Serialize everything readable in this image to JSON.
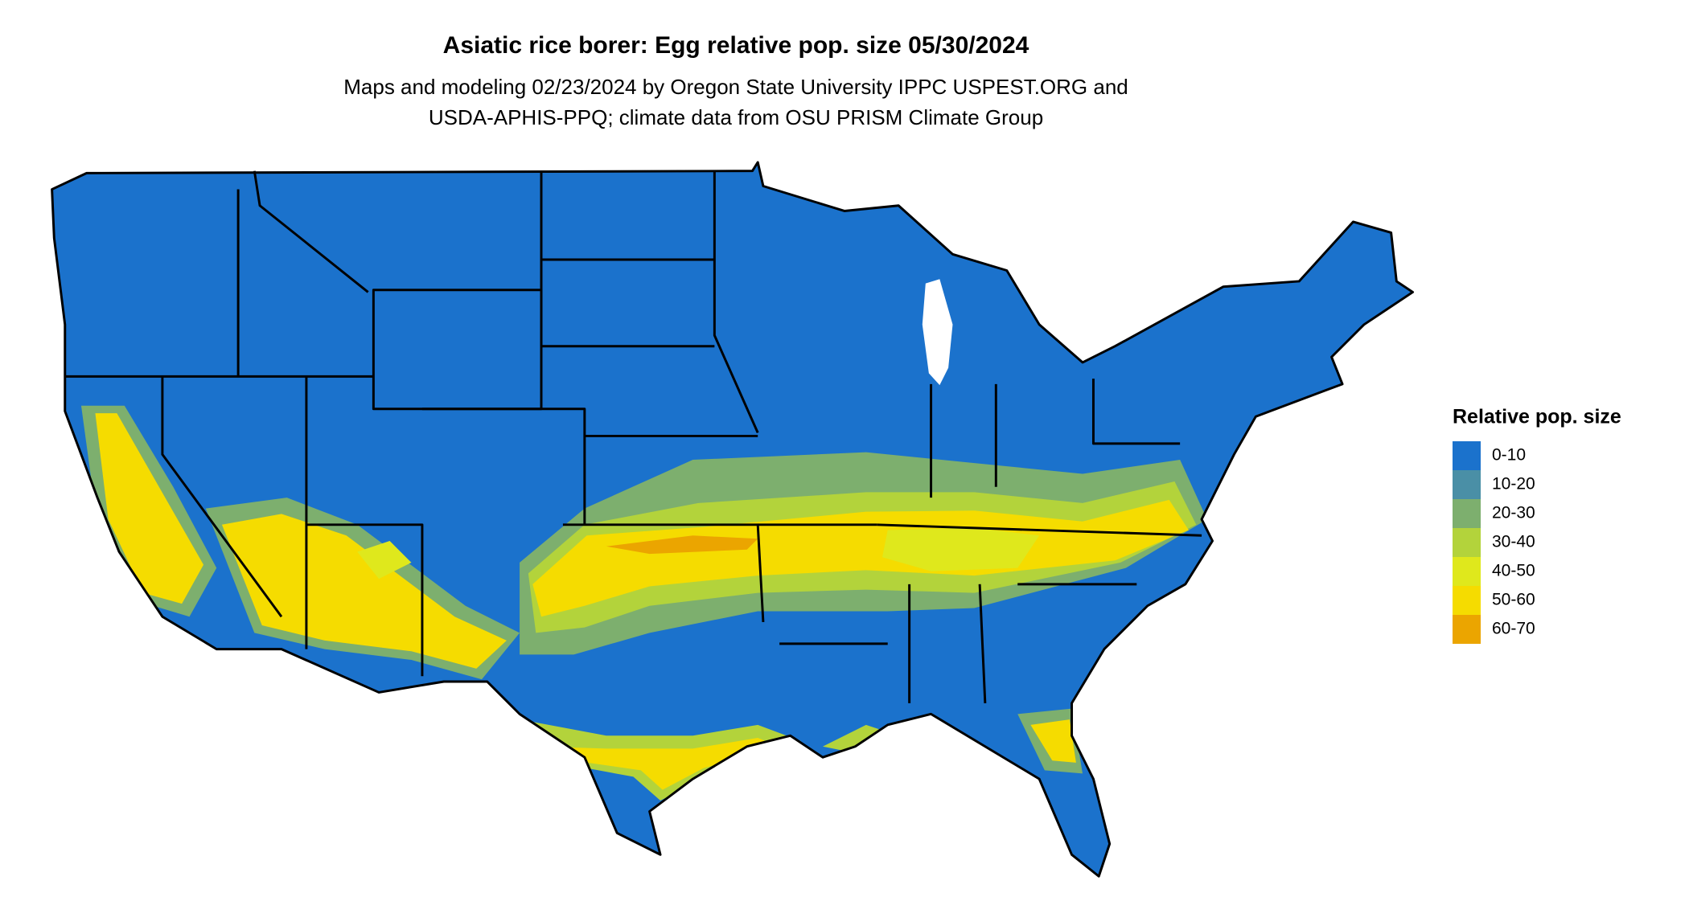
{
  "header": {
    "title": "Asiatic rice borer: Egg relative pop. size 05/30/2024",
    "subtitle_lines": [
      "Maps and modeling 02/23/2024 by Oregon State University IPPC USPEST.ORG and",
      "USDA-APHIS-PPQ; climate data from OSU PRISM Climate Group"
    ]
  },
  "legend": {
    "title": "Relative pop. size",
    "items": [
      {
        "label": "0-10",
        "color": "#1b72cc"
      },
      {
        "label": "10-20",
        "color": "#4a8fa6"
      },
      {
        "label": "20-30",
        "color": "#7daf6e"
      },
      {
        "label": "30-40",
        "color": "#b3d33b"
      },
      {
        "label": "40-50",
        "color": "#dfe81c"
      },
      {
        "label": "50-60",
        "color": "#f5dc00"
      },
      {
        "label": "60-70",
        "color": "#eba500"
      }
    ]
  }
}
